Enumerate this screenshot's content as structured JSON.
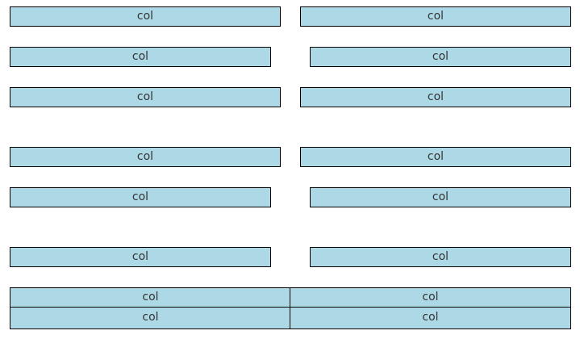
{
  "rows": [
    {
      "name": "row-1",
      "cols": [
        "col",
        "col"
      ]
    },
    {
      "name": "row-2",
      "cols": [
        "col",
        "col"
      ]
    },
    {
      "name": "row-3",
      "cols": [
        "col",
        "col"
      ]
    },
    {
      "name": "row-4",
      "cols": [
        "col",
        "col"
      ]
    },
    {
      "name": "row-5",
      "cols": [
        "col",
        "col"
      ]
    },
    {
      "name": "row-6",
      "cols": [
        "col",
        "col"
      ]
    },
    {
      "name": "row-7",
      "cols": [
        "col",
        "col"
      ]
    },
    {
      "name": "row-8",
      "cols": [
        "col",
        "col"
      ]
    }
  ],
  "colors": {
    "cell_background": "#add8e6",
    "cell_border": "#000000",
    "page_background": "#ffffff"
  }
}
